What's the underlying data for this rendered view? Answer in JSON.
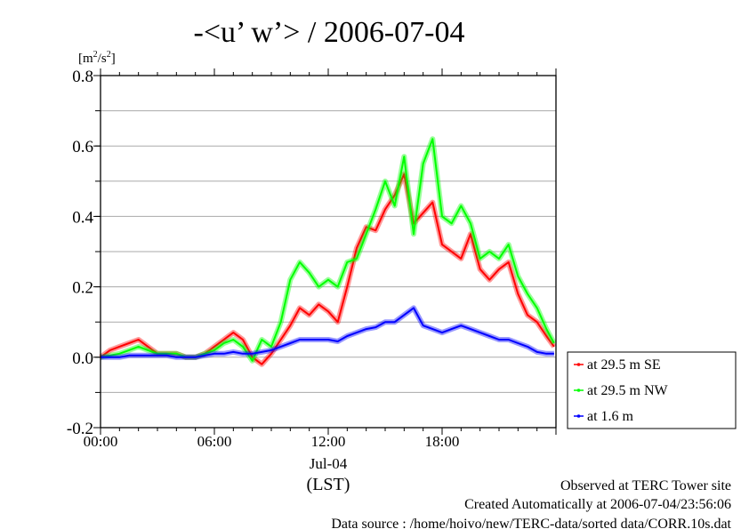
{
  "chart_data": {
    "type": "line",
    "title": "-<u’ w’> / 2006-07-04",
    "ylabel": "[m2/s2]",
    "ylabel_base": "[m",
    "ylabel_sup1": "2",
    "ylabel_mid": "/s",
    "ylabel_sup2": "2",
    "ylabel_end": "]",
    "xlabel_date": "Jul-04",
    "xlabel": "(LST)",
    "xlim": [
      0,
      24
    ],
    "ylim": [
      -0.2,
      0.8
    ],
    "yticks": [
      {
        "value": 0.8,
        "label": "0.8"
      },
      {
        "value": 0.6,
        "label": "0.6"
      },
      {
        "value": 0.4,
        "label": "0.4"
      },
      {
        "value": 0.2,
        "label": "0.2"
      },
      {
        "value": 0.0,
        "label": "0.0"
      },
      {
        "value": -0.2,
        "label": "-0.2"
      }
    ],
    "xticks": [
      {
        "value": 0,
        "label": "00:00"
      },
      {
        "value": 6,
        "label": "06:00"
      },
      {
        "value": 12,
        "label": "12:00"
      },
      {
        "value": 18,
        "label": "18:00"
      }
    ],
    "grid": true,
    "legend_position": "right-bottom-outside",
    "x_hours": [
      0,
      0.5,
      1,
      1.5,
      2,
      2.5,
      3,
      3.5,
      4,
      4.5,
      5,
      5.5,
      6,
      6.5,
      7,
      7.5,
      8,
      8.5,
      9,
      9.5,
      10,
      10.5,
      11,
      11.5,
      12,
      12.5,
      13,
      13.5,
      14,
      14.5,
      15,
      15.5,
      16,
      16.5,
      17,
      17.5,
      18,
      18.5,
      19,
      19.5,
      20,
      20.5,
      21,
      21.5,
      22,
      22.5,
      23,
      23.5,
      23.9
    ],
    "series": [
      {
        "name": "at 29.5 m SE",
        "color": "#ff0000",
        "values": [
          0.0,
          0.02,
          0.03,
          0.04,
          0.05,
          0.03,
          0.01,
          0.01,
          0.01,
          0.0,
          0.0,
          0.01,
          0.03,
          0.05,
          0.07,
          0.05,
          0.0,
          -0.02,
          0.01,
          0.05,
          0.09,
          0.14,
          0.12,
          0.15,
          0.13,
          0.1,
          0.2,
          0.31,
          0.37,
          0.36,
          0.42,
          0.46,
          0.52,
          0.38,
          0.41,
          0.44,
          0.32,
          0.3,
          0.28,
          0.35,
          0.25,
          0.22,
          0.25,
          0.27,
          0.18,
          0.12,
          0.1,
          0.06,
          0.03
        ]
      },
      {
        "name": "at 29.5 m NW",
        "color": "#00ff00",
        "values": [
          0.0,
          0.005,
          0.01,
          0.02,
          0.03,
          0.02,
          0.01,
          0.01,
          0.01,
          0.0,
          0.0,
          0.01,
          0.02,
          0.04,
          0.05,
          0.03,
          -0.01,
          0.05,
          0.03,
          0.1,
          0.22,
          0.27,
          0.24,
          0.2,
          0.22,
          0.2,
          0.27,
          0.28,
          0.35,
          0.42,
          0.5,
          0.43,
          0.57,
          0.35,
          0.55,
          0.62,
          0.4,
          0.38,
          0.43,
          0.38,
          0.28,
          0.3,
          0.28,
          0.32,
          0.23,
          0.18,
          0.14,
          0.08,
          0.04
        ]
      },
      {
        "name": "at 1.6 m",
        "color": "#0000ff",
        "values": [
          0.0,
          0.0,
          0.0,
          0.005,
          0.005,
          0.005,
          0.005,
          0.005,
          0.0,
          0.0,
          0.0,
          0.005,
          0.01,
          0.01,
          0.015,
          0.01,
          0.01,
          0.015,
          0.02,
          0.03,
          0.04,
          0.05,
          0.05,
          0.05,
          0.05,
          0.045,
          0.06,
          0.07,
          0.08,
          0.085,
          0.1,
          0.1,
          0.12,
          0.14,
          0.09,
          0.08,
          0.07,
          0.08,
          0.09,
          0.08,
          0.07,
          0.06,
          0.05,
          0.05,
          0.04,
          0.03,
          0.015,
          0.01,
          0.01
        ]
      }
    ]
  },
  "footer": {
    "line1": "Observed at TERC Tower site",
    "line2": "Created Automatically at 2006-07-04/23:56:06",
    "line3": "Data source : /home/hoivo/new/TERC-data/sorted  data/CORR.10s.dat"
  }
}
